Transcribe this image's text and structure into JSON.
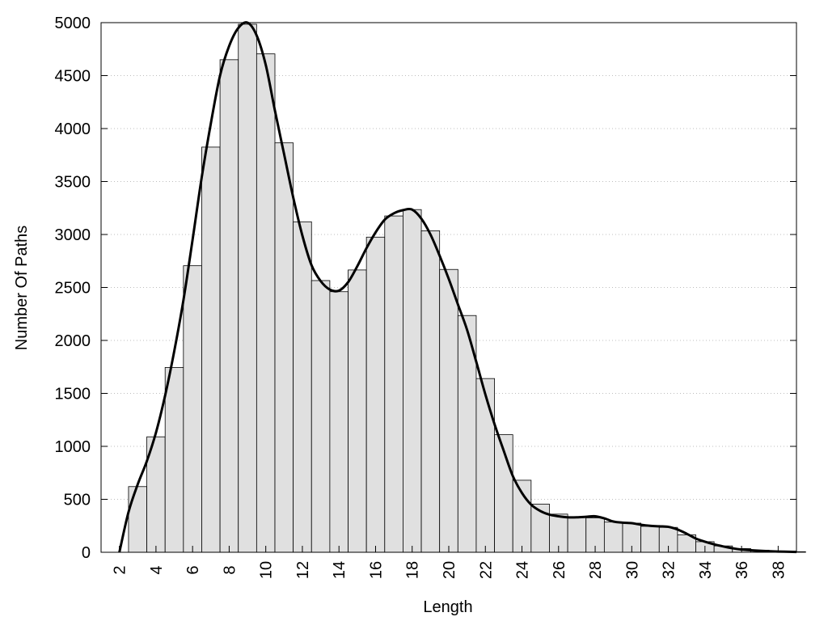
{
  "chart_data": {
    "type": "bar",
    "xlabel": "Length",
    "ylabel": "Number Of Paths",
    "xlim": [
      1,
      39
    ],
    "ylim": [
      0,
      5000
    ],
    "x_ticks": [
      2,
      4,
      6,
      8,
      10,
      12,
      14,
      16,
      18,
      20,
      22,
      24,
      26,
      28,
      30,
      32,
      34,
      36,
      38
    ],
    "y_ticks": [
      0,
      500,
      1000,
      1500,
      2000,
      2500,
      3000,
      3500,
      4000,
      4500,
      5000
    ],
    "grid": "horizontal dotted",
    "bar_color": "#e0e0e0",
    "bar_edge_color": "#000000",
    "bars": [
      {
        "x": 3,
        "value": 620
      },
      {
        "x": 4,
        "value": 1090
      },
      {
        "x": 5,
        "value": 1745
      },
      {
        "x": 6,
        "value": 2705
      },
      {
        "x": 7,
        "value": 3825
      },
      {
        "x": 8,
        "value": 4650
      },
      {
        "x": 9,
        "value": 4985
      },
      {
        "x": 10,
        "value": 4705
      },
      {
        "x": 11,
        "value": 3865
      },
      {
        "x": 12,
        "value": 3120
      },
      {
        "x": 13,
        "value": 2565
      },
      {
        "x": 14,
        "value": 2460
      },
      {
        "x": 15,
        "value": 2665
      },
      {
        "x": 16,
        "value": 2975
      },
      {
        "x": 17,
        "value": 3175
      },
      {
        "x": 18,
        "value": 3235
      },
      {
        "x": 19,
        "value": 3035
      },
      {
        "x": 20,
        "value": 2670
      },
      {
        "x": 21,
        "value": 2235
      },
      {
        "x": 22,
        "value": 1640
      },
      {
        "x": 23,
        "value": 1110
      },
      {
        "x": 24,
        "value": 680
      },
      {
        "x": 25,
        "value": 455
      },
      {
        "x": 26,
        "value": 360
      },
      {
        "x": 27,
        "value": 330
      },
      {
        "x": 28,
        "value": 325
      },
      {
        "x": 29,
        "value": 285
      },
      {
        "x": 30,
        "value": 275
      },
      {
        "x": 31,
        "value": 245
      },
      {
        "x": 32,
        "value": 235
      },
      {
        "x": 33,
        "value": 165
      },
      {
        "x": 34,
        "value": 100
      },
      {
        "x": 35,
        "value": 60
      },
      {
        "x": 36,
        "value": 35
      },
      {
        "x": 37,
        "value": 20
      },
      {
        "x": 38,
        "value": 10
      },
      {
        "x": 39,
        "value": 5
      }
    ],
    "curve": {
      "color": "#000000",
      "points": [
        [
          2,
          0
        ],
        [
          2.5,
          380
        ],
        [
          3,
          640
        ],
        [
          3.5,
          860
        ],
        [
          4,
          1130
        ],
        [
          4.5,
          1480
        ],
        [
          5,
          1900
        ],
        [
          5.5,
          2380
        ],
        [
          6,
          2950
        ],
        [
          6.5,
          3540
        ],
        [
          7,
          4050
        ],
        [
          7.5,
          4500
        ],
        [
          8,
          4780
        ],
        [
          8.5,
          4950
        ],
        [
          9,
          5000
        ],
        [
          9.5,
          4880
        ],
        [
          10,
          4600
        ],
        [
          10.5,
          4170
        ],
        [
          11,
          3760
        ],
        [
          11.5,
          3350
        ],
        [
          12,
          2990
        ],
        [
          12.5,
          2710
        ],
        [
          13,
          2560
        ],
        [
          13.5,
          2480
        ],
        [
          14,
          2470
        ],
        [
          14.5,
          2550
        ],
        [
          15,
          2700
        ],
        [
          15.5,
          2870
        ],
        [
          16,
          3020
        ],
        [
          16.5,
          3140
        ],
        [
          17,
          3200
        ],
        [
          17.5,
          3230
        ],
        [
          18,
          3235
        ],
        [
          18.5,
          3150
        ],
        [
          19,
          3000
        ],
        [
          19.5,
          2800
        ],
        [
          20,
          2580
        ],
        [
          20.5,
          2340
        ],
        [
          21,
          2100
        ],
        [
          21.5,
          1800
        ],
        [
          22,
          1490
        ],
        [
          22.5,
          1210
        ],
        [
          23,
          960
        ],
        [
          23.5,
          720
        ],
        [
          24,
          560
        ],
        [
          24.5,
          450
        ],
        [
          25,
          390
        ],
        [
          25.5,
          355
        ],
        [
          26,
          340
        ],
        [
          26.5,
          330
        ],
        [
          27,
          330
        ],
        [
          27.5,
          335
        ],
        [
          28,
          340
        ],
        [
          28.5,
          320
        ],
        [
          29,
          290
        ],
        [
          29.5,
          280
        ],
        [
          30,
          275
        ],
        [
          30.5,
          260
        ],
        [
          31,
          250
        ],
        [
          31.5,
          245
        ],
        [
          32,
          240
        ],
        [
          32.5,
          215
        ],
        [
          33,
          175
        ],
        [
          33.5,
          130
        ],
        [
          34,
          100
        ],
        [
          34.5,
          75
        ],
        [
          35,
          55
        ],
        [
          35.5,
          38
        ],
        [
          36,
          26
        ],
        [
          37,
          14
        ],
        [
          38,
          7
        ],
        [
          39,
          3
        ]
      ]
    }
  }
}
